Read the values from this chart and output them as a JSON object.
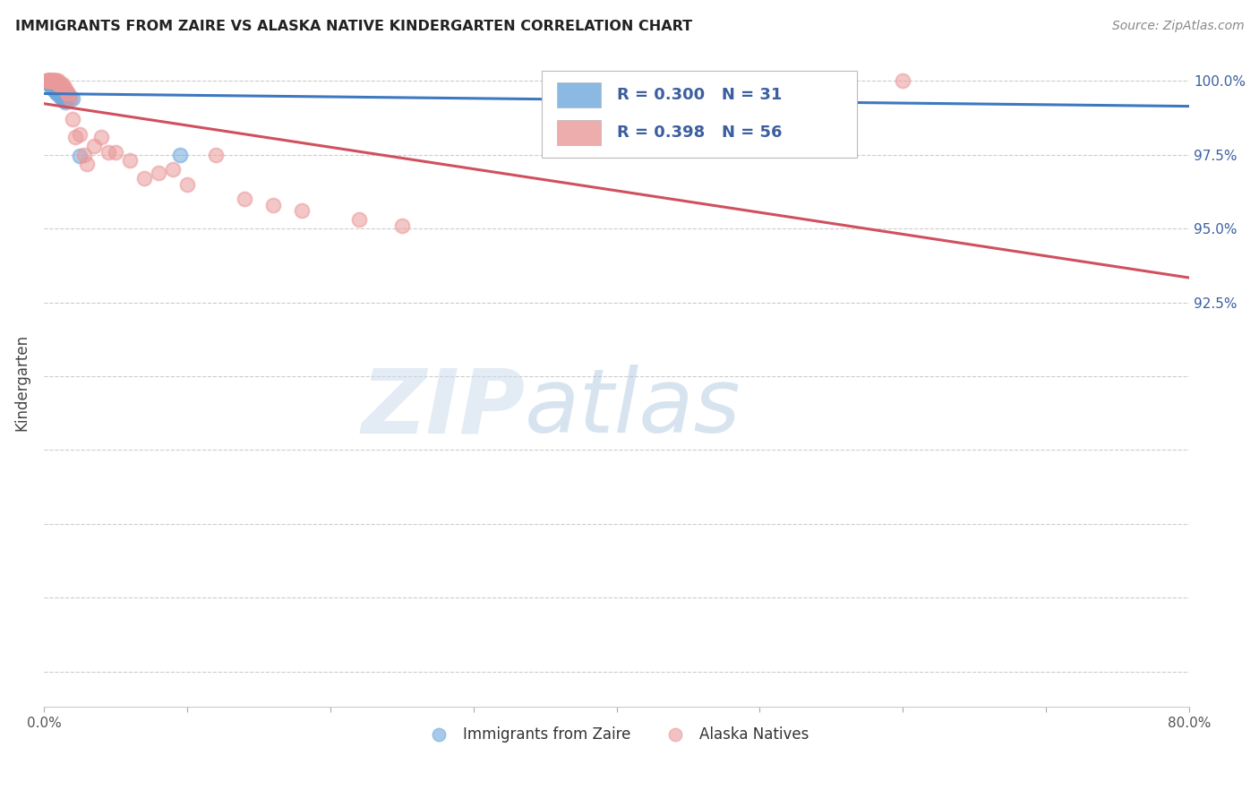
{
  "title": "IMMIGRANTS FROM ZAIRE VS ALASKA NATIVE KINDERGARTEN CORRELATION CHART",
  "source": "Source: ZipAtlas.com",
  "ylabel": "Kindergarten",
  "x_min": 0.0,
  "x_max": 0.8,
  "y_min": 0.788,
  "y_max": 1.008,
  "x_ticks": [
    0.0,
    0.1,
    0.2,
    0.3,
    0.4,
    0.5,
    0.6,
    0.7,
    0.8
  ],
  "x_tick_labels": [
    "0.0%",
    "",
    "",
    "",
    "",
    "",
    "",
    "",
    "80.0%"
  ],
  "y_ticks": [
    0.8,
    0.825,
    0.85,
    0.875,
    0.9,
    0.925,
    0.95,
    0.975,
    1.0
  ],
  "y_tick_labels_right": [
    "",
    "",
    "",
    "",
    "",
    "92.5%",
    "95.0%",
    "97.5%",
    "100.0%"
  ],
  "blue_color": "#6fa8dc",
  "pink_color": "#ea9999",
  "blue_line_color": "#3d78c0",
  "pink_line_color": "#d05060",
  "legend_text_color": "#3c5fa0",
  "R_blue": 0.3,
  "N_blue": 31,
  "R_pink": 0.398,
  "N_pink": 56,
  "blue_scatter_x": [
    0.002,
    0.003,
    0.003,
    0.004,
    0.004,
    0.004,
    0.005,
    0.005,
    0.005,
    0.006,
    0.006,
    0.007,
    0.007,
    0.007,
    0.008,
    0.008,
    0.009,
    0.009,
    0.01,
    0.01,
    0.011,
    0.012,
    0.013,
    0.014,
    0.015,
    0.016,
    0.018,
    0.02,
    0.025,
    0.095,
    0.38
  ],
  "blue_scatter_y": [
    0.9995,
    0.9995,
    1.0,
    0.999,
    1.0,
    1.0,
    0.999,
    0.9985,
    0.998,
    0.9975,
    0.9985,
    0.9975,
    0.997,
    0.998,
    0.9965,
    0.9975,
    0.9965,
    0.996,
    0.9955,
    0.996,
    0.995,
    0.9945,
    0.994,
    0.9935,
    0.993,
    0.996,
    0.994,
    0.994,
    0.9745,
    0.975,
    1.0
  ],
  "pink_scatter_x": [
    0.002,
    0.002,
    0.003,
    0.003,
    0.004,
    0.004,
    0.004,
    0.005,
    0.005,
    0.005,
    0.006,
    0.006,
    0.006,
    0.007,
    0.007,
    0.007,
    0.008,
    0.008,
    0.008,
    0.009,
    0.009,
    0.01,
    0.01,
    0.01,
    0.011,
    0.011,
    0.012,
    0.012,
    0.013,
    0.013,
    0.014,
    0.015,
    0.016,
    0.017,
    0.018,
    0.02,
    0.022,
    0.025,
    0.028,
    0.03,
    0.035,
    0.04,
    0.045,
    0.05,
    0.06,
    0.07,
    0.08,
    0.09,
    0.1,
    0.12,
    0.14,
    0.16,
    0.18,
    0.22,
    0.25,
    0.6
  ],
  "pink_scatter_y": [
    1.0,
    1.0,
    1.0,
    1.0,
    1.0,
    1.0,
    1.0,
    1.0,
    1.0,
    1.0,
    1.0,
    1.0,
    1.0,
    1.0,
    1.0,
    1.0,
    1.0,
    1.0,
    0.9995,
    0.9995,
    1.0,
    0.9995,
    1.0,
    0.999,
    0.999,
    0.9985,
    0.9985,
    0.998,
    0.9975,
    0.999,
    0.998,
    0.9975,
    0.996,
    0.996,
    0.994,
    0.987,
    0.981,
    0.982,
    0.975,
    0.972,
    0.978,
    0.981,
    0.976,
    0.976,
    0.973,
    0.967,
    0.969,
    0.97,
    0.965,
    0.975,
    0.96,
    0.958,
    0.956,
    0.953,
    0.951,
    1.0
  ]
}
